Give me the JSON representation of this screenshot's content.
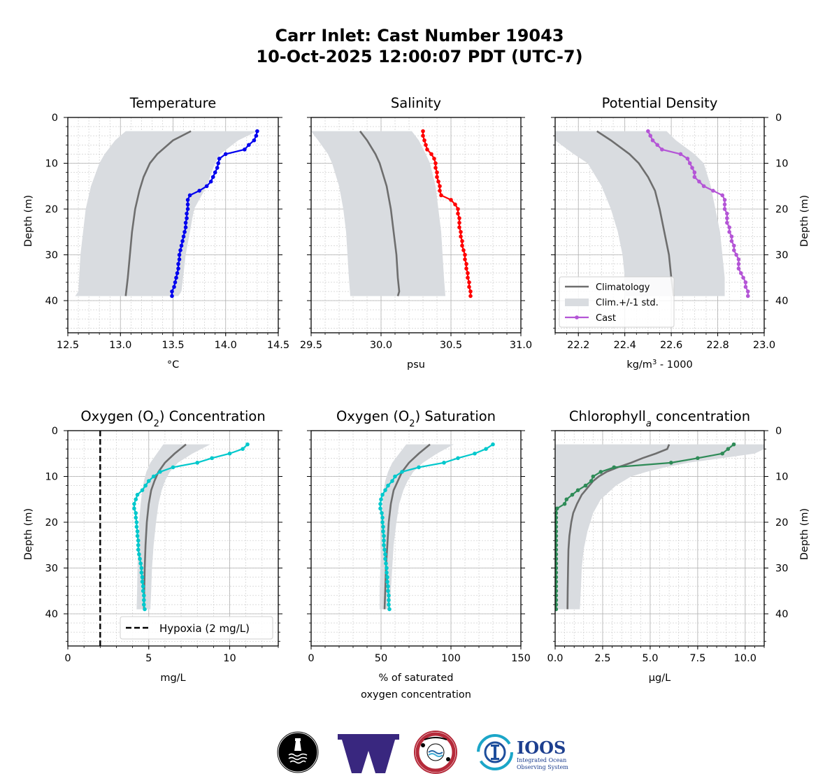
{
  "figure": {
    "title_line1": "Carr Inlet:  Cast Number 19043",
    "title_line2": "10-Oct-2025 12:00:07 PDT (UTC-7)"
  },
  "colors": {
    "climatology": "#6e6e6e",
    "std_band": "#d9dce0",
    "temperature": "#0000ee",
    "salinity": "#ff0000",
    "density": "#b455d6",
    "oxygen": "#00c8cc",
    "chlorophyll": "#2e8b57",
    "hypoxia": "#000000"
  },
  "legend": {
    "climatology": "Climatology",
    "std": "Clim.+/-1 std.",
    "cast": "Cast",
    "hypoxia": "Hypoxia (2 mg/L)"
  },
  "logos": {
    "ioos_name": "IOOS",
    "ioos_line1": "Integrated Ocean",
    "ioos_line2": "Observing System"
  },
  "chart_data": [
    {
      "type": "line",
      "id": "temperature",
      "title": "Temperature",
      "xlabel": "°C",
      "ylabel": "Depth (m)",
      "xlim": [
        12.5,
        14.5
      ],
      "ylim": [
        47,
        0
      ],
      "xticks": [
        "12.5",
        "13.0",
        "13.5",
        "14.0",
        "14.5"
      ],
      "yticks": [
        "0",
        "10",
        "20",
        "30",
        "40"
      ],
      "ylabel_side": "left",
      "grid": true,
      "climatology": {
        "depth": [
          3,
          5,
          8,
          10,
          13,
          16,
          20,
          25,
          30,
          35,
          39
        ],
        "values": [
          13.67,
          13.5,
          13.35,
          13.28,
          13.22,
          13.18,
          13.14,
          13.11,
          13.09,
          13.07,
          13.05
        ]
      },
      "std_band": {
        "depth": [
          3,
          5,
          8,
          10,
          15,
          20,
          30,
          38,
          39
        ],
        "low": [
          13.05,
          12.95,
          12.85,
          12.8,
          12.72,
          12.67,
          12.62,
          12.6,
          12.57
        ],
        "high": [
          14.3,
          14.12,
          13.95,
          13.9,
          13.82,
          13.7,
          13.62,
          13.58,
          13.55
        ]
      },
      "cast": {
        "depth": [
          3,
          4,
          5,
          6,
          7,
          8,
          9,
          10,
          11,
          12,
          13,
          14,
          15,
          16,
          17,
          18,
          19,
          20,
          21,
          22,
          23,
          24,
          25,
          26,
          27,
          28,
          29,
          30,
          31,
          32,
          33,
          34,
          35,
          36,
          37,
          38,
          39
        ],
        "values": [
          14.3,
          14.29,
          14.27,
          14.22,
          14.18,
          14.0,
          13.94,
          13.93,
          13.92,
          13.9,
          13.88,
          13.86,
          13.82,
          13.75,
          13.66,
          13.64,
          13.64,
          13.64,
          13.63,
          13.63,
          13.62,
          13.62,
          13.61,
          13.6,
          13.59,
          13.58,
          13.57,
          13.56,
          13.56,
          13.55,
          13.55,
          13.54,
          13.53,
          13.52,
          13.51,
          13.49,
          13.49
        ]
      }
    },
    {
      "type": "line",
      "id": "salinity",
      "title": "Salinity",
      "xlabel": "psu",
      "ylabel": "",
      "xlim": [
        29.5,
        31.0
      ],
      "ylim": [
        47,
        0
      ],
      "xticks": [
        "29.5",
        "30.0",
        "30.5",
        "31.0"
      ],
      "yticks": [],
      "grid": true,
      "climatology": {
        "depth": [
          3,
          5,
          8,
          10,
          15,
          20,
          25,
          30,
          35,
          38,
          39
        ],
        "values": [
          29.85,
          29.9,
          29.96,
          29.99,
          30.04,
          30.07,
          30.09,
          30.11,
          30.12,
          30.13,
          30.12
        ]
      },
      "std_band": {
        "depth": [
          3,
          5,
          8,
          10,
          15,
          20,
          25,
          30,
          35,
          39
        ],
        "low": [
          29.5,
          29.55,
          29.62,
          29.65,
          29.7,
          29.73,
          29.75,
          29.76,
          29.77,
          29.78
        ],
        "high": [
          30.22,
          30.27,
          30.32,
          30.35,
          30.39,
          30.41,
          30.43,
          30.44,
          30.45,
          30.46
        ]
      },
      "cast": {
        "depth": [
          3,
          4,
          5,
          6,
          7,
          8,
          9,
          10,
          11,
          12,
          13,
          14,
          15,
          16,
          17,
          18,
          19,
          20,
          21,
          22,
          23,
          24,
          25,
          26,
          27,
          28,
          29,
          30,
          31,
          32,
          33,
          34,
          35,
          36,
          37,
          38,
          39
        ],
        "values": [
          30.3,
          30.3,
          30.31,
          30.32,
          30.33,
          30.36,
          30.38,
          30.39,
          30.39,
          30.4,
          30.4,
          30.41,
          30.42,
          30.42,
          30.43,
          30.5,
          30.53,
          30.55,
          30.55,
          30.56,
          30.56,
          30.56,
          30.57,
          30.57,
          30.58,
          30.58,
          30.59,
          30.6,
          30.6,
          30.61,
          30.61,
          30.62,
          30.62,
          30.63,
          30.63,
          30.64,
          30.64
        ]
      }
    },
    {
      "type": "line",
      "id": "density",
      "title": "Potential Density",
      "xlabel": "kg/m",
      "xlabel_sup": "3",
      "xlabel_suffix": " - 1000",
      "ylabel": "Depth (m)",
      "ylabel_side": "right",
      "xlim": [
        22.1,
        23.0
      ],
      "ylim": [
        47,
        0
      ],
      "xticks": [
        "22.2",
        "22.4",
        "22.6",
        "22.8",
        "23.0"
      ],
      "yticks": [
        "0",
        "10",
        "20",
        "30",
        "40"
      ],
      "grid": true,
      "legend_position": "lower-left",
      "climatology": {
        "depth": [
          3,
          5,
          8,
          10,
          13,
          16,
          20,
          25,
          30,
          35,
          39
        ],
        "values": [
          22.28,
          22.34,
          22.42,
          22.46,
          22.5,
          22.53,
          22.55,
          22.57,
          22.59,
          22.6,
          22.61
        ]
      },
      "std_band": {
        "depth": [
          3,
          5,
          8,
          10,
          15,
          20,
          25,
          30,
          35,
          39
        ],
        "low": [
          22.1,
          22.1,
          22.18,
          22.24,
          22.3,
          22.34,
          22.37,
          22.39,
          22.4,
          22.4
        ],
        "high": [
          22.58,
          22.62,
          22.7,
          22.74,
          22.77,
          22.79,
          22.81,
          22.82,
          22.83,
          22.83
        ]
      },
      "cast": {
        "depth": [
          3,
          4,
          5,
          6,
          7,
          8,
          9,
          10,
          11,
          12,
          13,
          14,
          15,
          16,
          17,
          18,
          19,
          20,
          21,
          22,
          23,
          24,
          25,
          26,
          27,
          28,
          29,
          30,
          31,
          32,
          33,
          34,
          35,
          36,
          37,
          38,
          39
        ],
        "values": [
          22.5,
          22.51,
          22.52,
          22.54,
          22.56,
          22.64,
          22.67,
          22.68,
          22.69,
          22.7,
          22.7,
          22.72,
          22.74,
          22.78,
          22.82,
          22.83,
          22.83,
          22.83,
          22.84,
          22.84,
          22.84,
          22.85,
          22.85,
          22.86,
          22.86,
          22.87,
          22.87,
          22.88,
          22.89,
          22.89,
          22.89,
          22.9,
          22.91,
          22.92,
          22.92,
          22.93,
          22.93
        ]
      }
    },
    {
      "type": "line",
      "id": "oxygen-concentration",
      "title": "Oxygen (O",
      "title_sub": "2",
      "title_suffix": ") Concentration",
      "xlabel": "mg/L",
      "ylabel": "Depth (m)",
      "ylabel_side": "left",
      "xlim": [
        0,
        13
      ],
      "ylim": [
        47,
        0
      ],
      "xticks": [
        "0",
        "5",
        "10"
      ],
      "xtick_values": [
        0,
        5,
        10
      ],
      "yticks": [
        "0",
        "10",
        "20",
        "30",
        "40"
      ],
      "grid": true,
      "legend_position": "lower-right",
      "hypoxia_threshold": 2,
      "climatology": {
        "depth": [
          3,
          5,
          7,
          9,
          11,
          13,
          16,
          20,
          25,
          30,
          35,
          39
        ],
        "values": [
          7.3,
          6.6,
          6.0,
          5.6,
          5.35,
          5.15,
          5.0,
          4.88,
          4.8,
          4.75,
          4.72,
          4.7
        ]
      },
      "std_band": {
        "depth": [
          3,
          5,
          7,
          9,
          11,
          13,
          16,
          20,
          25,
          30,
          35,
          39
        ],
        "low": [
          5.9,
          5.5,
          5.1,
          4.85,
          4.7,
          4.6,
          4.5,
          4.4,
          4.35,
          4.3,
          4.28,
          4.25
        ],
        "high": [
          8.8,
          7.7,
          6.8,
          6.3,
          6.0,
          5.8,
          5.6,
          5.45,
          5.3,
          5.2,
          5.15,
          5.1
        ]
      },
      "cast": {
        "depth": [
          3,
          4,
          5,
          6,
          7,
          8,
          9,
          10,
          11,
          12,
          13,
          14,
          15,
          16,
          17,
          18,
          19,
          20,
          21,
          22,
          23,
          24,
          25,
          26,
          27,
          28,
          29,
          30,
          31,
          32,
          33,
          34,
          35,
          36,
          37,
          38,
          39
        ],
        "values": [
          11.1,
          10.8,
          10.0,
          8.9,
          8.0,
          6.5,
          5.7,
          5.3,
          5.0,
          4.8,
          4.6,
          4.3,
          4.2,
          4.1,
          4.1,
          4.2,
          4.2,
          4.25,
          4.25,
          4.3,
          4.3,
          4.35,
          4.35,
          4.35,
          4.4,
          4.45,
          4.5,
          4.55,
          4.55,
          4.6,
          4.6,
          4.65,
          4.65,
          4.7,
          4.7,
          4.7,
          4.75
        ]
      }
    },
    {
      "type": "line",
      "id": "oxygen-saturation",
      "title": "Oxygen (O",
      "title_sub": "2",
      "title_suffix": ") Saturation",
      "xlabel": "% of saturated",
      "xlabel_line2": "oxygen concentration",
      "ylabel": "",
      "xlim": [
        0,
        150
      ],
      "ylim": [
        47,
        0
      ],
      "xticks": [
        "0",
        "50",
        "100",
        "150"
      ],
      "xtick_values": [
        0,
        50,
        100,
        150
      ],
      "yticks": [],
      "grid": true,
      "climatology": {
        "depth": [
          3,
          5,
          7,
          9,
          11,
          13,
          16,
          20,
          25,
          30,
          35,
          39
        ],
        "values": [
          85,
          77,
          70,
          65,
          62,
          59,
          57,
          55.5,
          54.5,
          53.5,
          53,
          52.5
        ]
      },
      "std_band": {
        "depth": [
          3,
          5,
          7,
          9,
          11,
          13,
          16,
          20,
          25,
          30,
          35,
          39
        ],
        "low": [
          68,
          63,
          58,
          55,
          53,
          52,
          51,
          50.5,
          50,
          49.5,
          49,
          49
        ],
        "high": [
          102,
          90,
          80,
          73,
          69,
          66,
          63,
          61,
          59,
          58,
          57,
          56.5
        ]
      },
      "cast": {
        "depth": [
          3,
          4,
          5,
          6,
          7,
          8,
          9,
          10,
          11,
          12,
          13,
          14,
          15,
          16,
          17,
          18,
          19,
          20,
          21,
          22,
          23,
          24,
          25,
          26,
          27,
          28,
          29,
          30,
          31,
          32,
          33,
          34,
          35,
          36,
          37,
          38,
          39
        ],
        "values": [
          130,
          125,
          117,
          105,
          95,
          77,
          65,
          60,
          58,
          55,
          53,
          51,
          50,
          49.5,
          49.5,
          50.5,
          51,
          51,
          51.5,
          51.5,
          52,
          52,
          52,
          52.5,
          53,
          53,
          53.5,
          54,
          54,
          54.5,
          54.5,
          55,
          55,
          55.5,
          55.5,
          55.5,
          56
        ]
      }
    },
    {
      "type": "line",
      "id": "chlorophyll",
      "title": "Chlorophyll",
      "title_sub": "a",
      "title_suffix": " concentration",
      "xlabel": "μg/L",
      "ylabel": "Depth (m)",
      "ylabel_side": "right",
      "xlim": [
        0,
        11
      ],
      "ylim": [
        47,
        0
      ],
      "xticks": [
        "0.0",
        "2.5",
        "5.0",
        "7.5",
        "10.0"
      ],
      "xtick_values": [
        0,
        2.5,
        5,
        7.5,
        10
      ],
      "yticks": [
        "0",
        "10",
        "20",
        "30",
        "40"
      ],
      "grid": true,
      "climatology": {
        "depth": [
          3,
          4,
          5,
          6,
          7,
          8,
          9,
          10,
          11,
          12,
          13,
          14,
          16,
          18,
          20,
          23,
          26,
          30,
          35,
          39
        ],
        "values": [
          6.0,
          5.9,
          5.3,
          4.6,
          4.0,
          3.3,
          2.7,
          2.3,
          2.0,
          1.8,
          1.6,
          1.4,
          1.15,
          0.95,
          0.85,
          0.75,
          0.7,
          0.68,
          0.66,
          0.65
        ]
      },
      "std_band": {
        "depth": [
          3,
          4,
          5,
          6,
          7,
          8,
          9,
          10,
          12,
          15,
          18,
          22,
          26,
          30,
          35,
          39
        ],
        "low": [
          0,
          0,
          0,
          0,
          0,
          0,
          0,
          0,
          0,
          0,
          0,
          0,
          0,
          0,
          0,
          0
        ],
        "high": [
          11,
          11,
          10.5,
          8.8,
          7.0,
          5.8,
          4.8,
          4.0,
          3.2,
          2.4,
          2.0,
          1.7,
          1.5,
          1.4,
          1.35,
          1.3
        ]
      },
      "std_band_low_top": {
        "depth": [
          3,
          5,
          7
        ],
        "values": [
          0.3,
          0.15,
          0
        ]
      },
      "cast": {
        "depth": [
          3,
          4,
          5,
          6,
          7,
          8,
          9,
          10,
          11,
          12,
          13,
          14,
          15,
          16,
          17,
          18,
          19,
          20,
          21,
          22,
          23,
          24,
          25,
          26,
          27,
          28,
          29,
          30,
          31,
          32,
          33,
          34,
          35,
          36,
          37,
          38,
          39
        ],
        "values": [
          9.4,
          9.1,
          8.8,
          7.5,
          6.1,
          3.1,
          2.4,
          2.0,
          1.9,
          1.6,
          1.2,
          0.9,
          0.6,
          0.5,
          0.1,
          0.05,
          0.05,
          0.05,
          0.05,
          0.05,
          0.05,
          0.05,
          0.05,
          0.05,
          0.05,
          0.05,
          0.05,
          0.05,
          0.05,
          0.05,
          0.05,
          0.05,
          0.05,
          0.05,
          0.05,
          0.05,
          0.05
        ]
      }
    }
  ]
}
